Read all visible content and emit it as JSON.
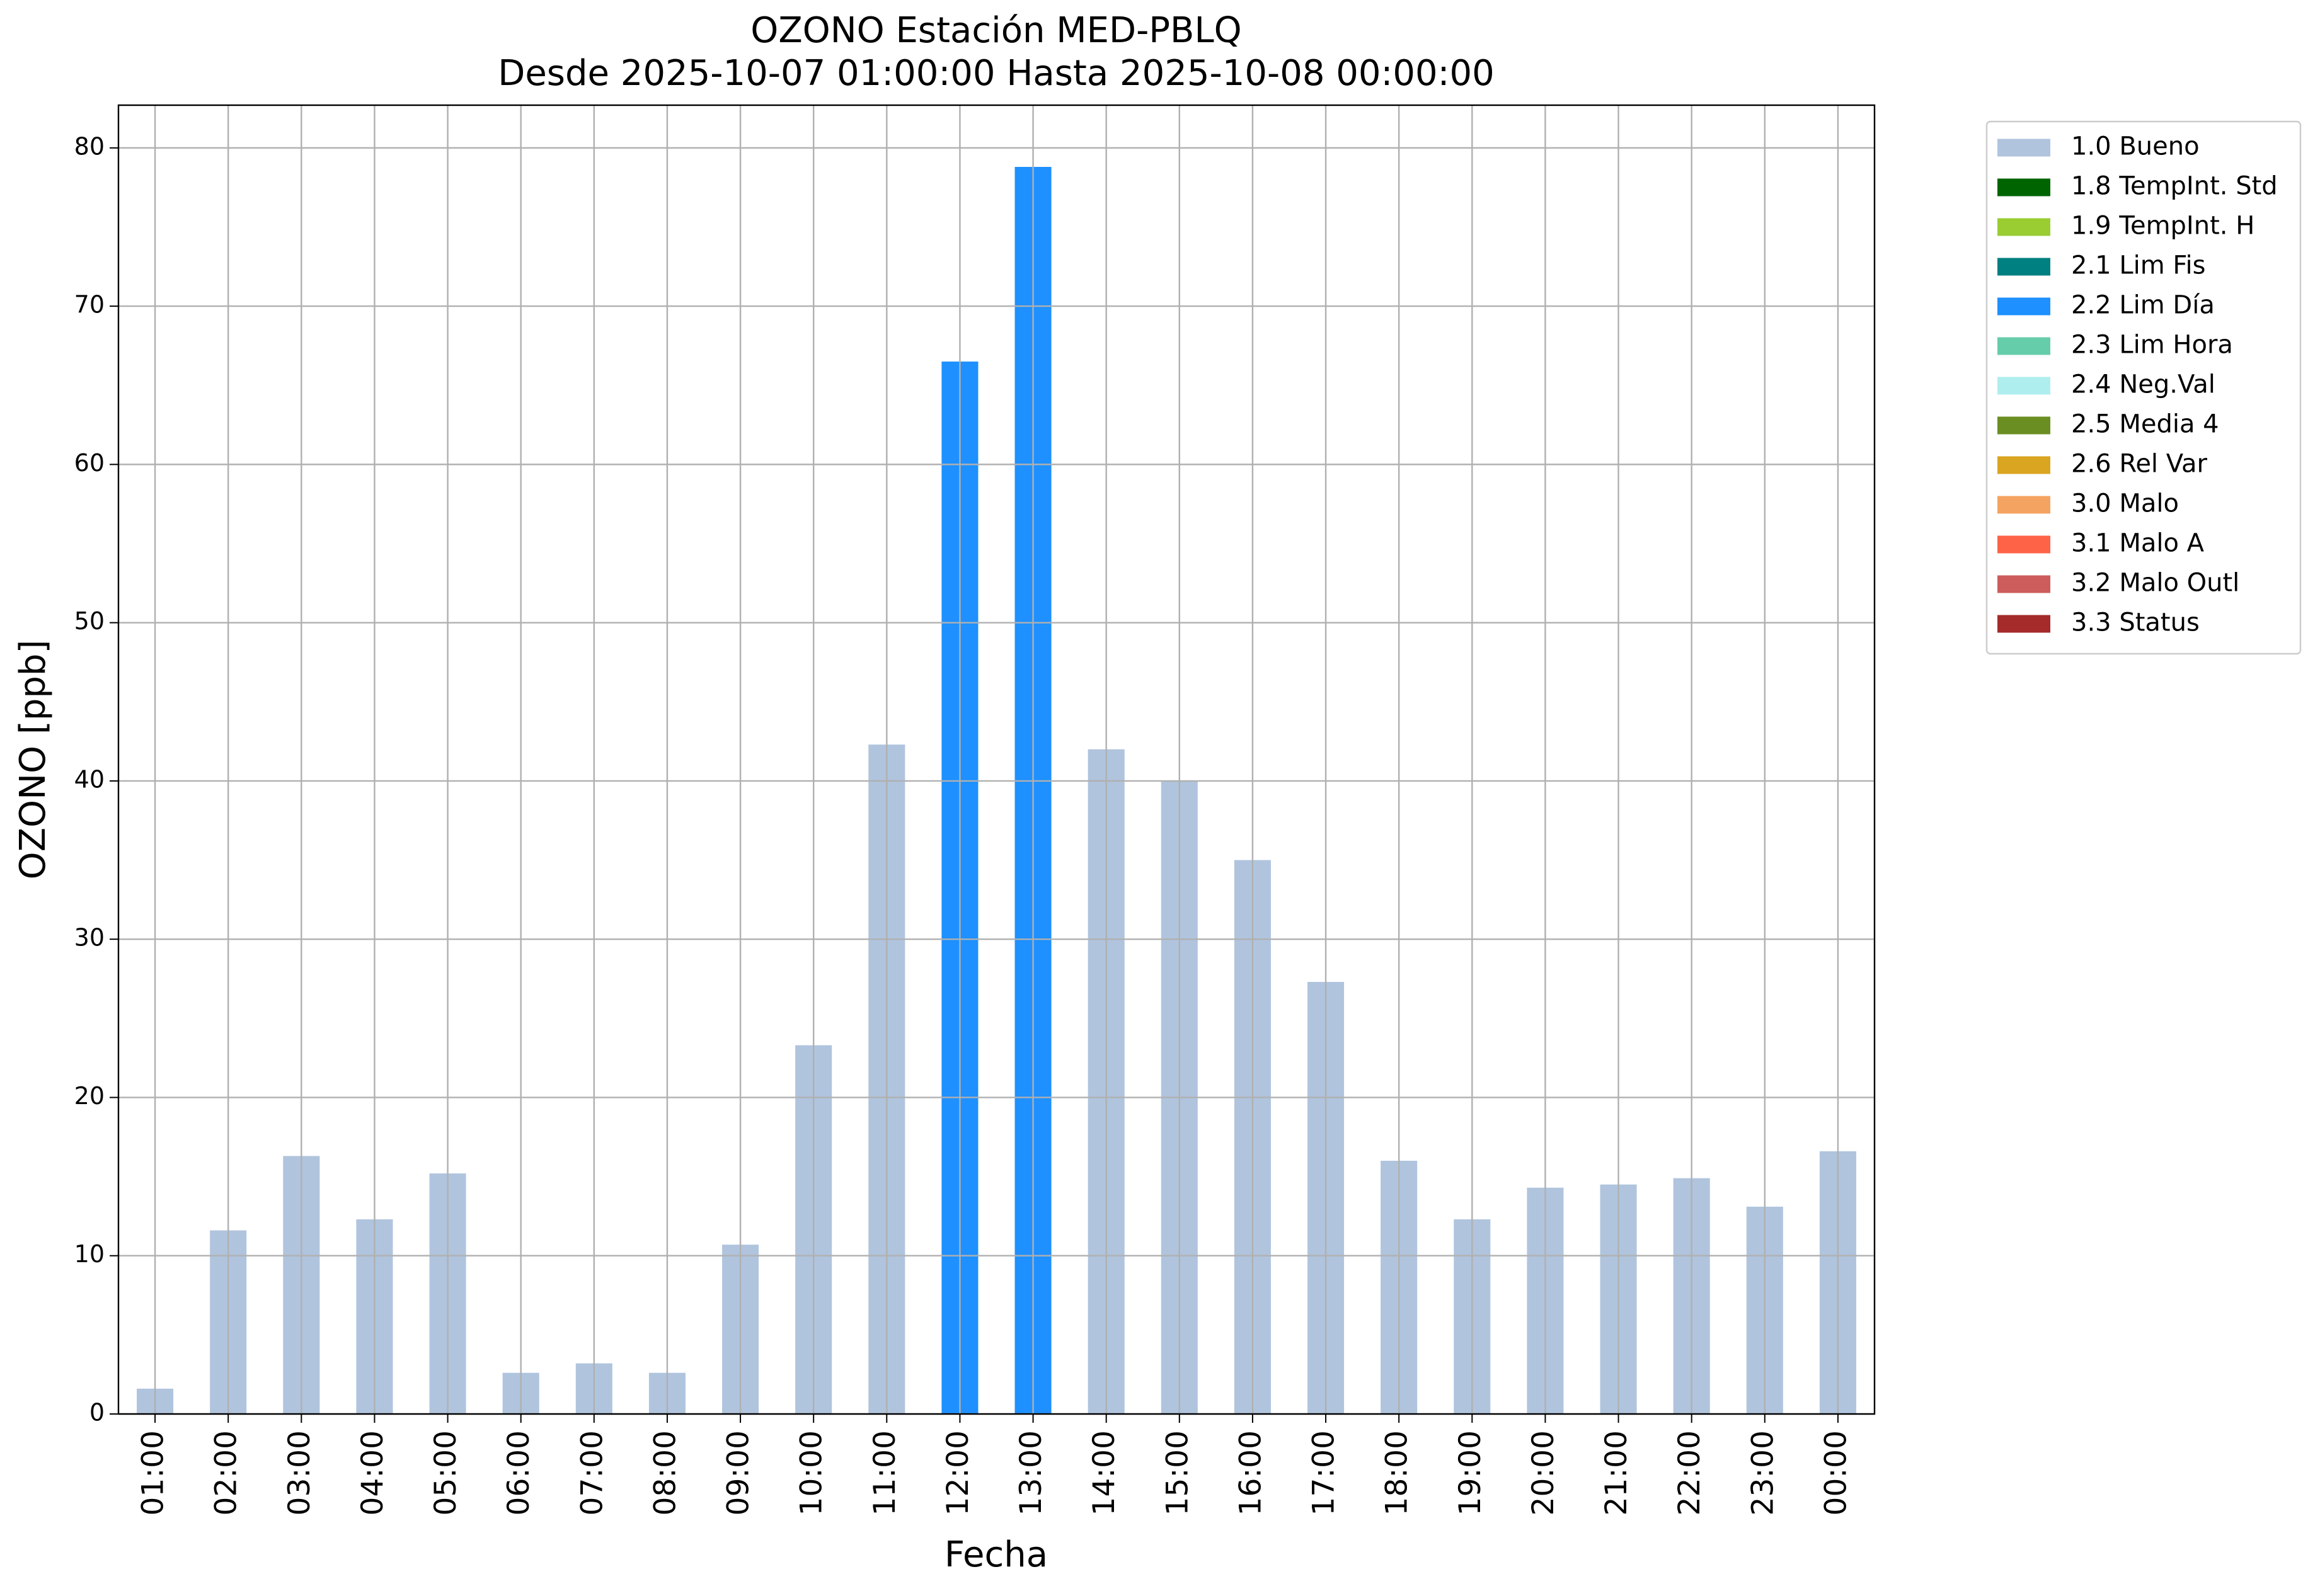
{
  "chart_data": {
    "type": "bar",
    "stacked": true,
    "title": "OZONO Estación MED-PBLQ",
    "subtitle": "Desde 2025-10-07 01:00:00 Hasta 2025-10-08 00:00:00",
    "x_label": "Fecha",
    "y_label": "OZONO [ppb]",
    "categories": [
      "01:00",
      "02:00",
      "03:00",
      "04:00",
      "05:00",
      "06:00",
      "07:00",
      "08:00",
      "09:00",
      "10:00",
      "11:00",
      "12:00",
      "13:00",
      "14:00",
      "15:00",
      "16:00",
      "17:00",
      "18:00",
      "19:00",
      "20:00",
      "21:00",
      "22:00",
      "23:00",
      "00:00"
    ],
    "series": [
      {
        "name": "1.0 Bueno",
        "color": "#b0c4de",
        "values": [
          1.6,
          11.6,
          16.3,
          12.3,
          15.2,
          2.6,
          3.2,
          2.6,
          10.7,
          23.3,
          42.3,
          null,
          null,
          42.0,
          40.0,
          35.0,
          27.3,
          16.0,
          12.3,
          14.3,
          14.5,
          14.9,
          13.1,
          16.6
        ]
      },
      {
        "name": "1.8 TempInt. Std",
        "color": "#006400",
        "values": [
          null,
          null,
          null,
          null,
          null,
          null,
          null,
          null,
          null,
          null,
          null,
          null,
          null,
          null,
          null,
          null,
          null,
          null,
          null,
          null,
          null,
          null,
          null,
          null
        ]
      },
      {
        "name": "1.9 TempInt. H",
        "color": "#9acd32",
        "values": [
          null,
          null,
          null,
          null,
          null,
          null,
          null,
          null,
          null,
          null,
          null,
          null,
          null,
          null,
          null,
          null,
          null,
          null,
          null,
          null,
          null,
          null,
          null,
          null
        ]
      },
      {
        "name": "2.1 Lim Fis",
        "color": "#008080",
        "values": [
          null,
          null,
          null,
          null,
          null,
          null,
          null,
          null,
          null,
          null,
          null,
          null,
          null,
          null,
          null,
          null,
          null,
          null,
          null,
          null,
          null,
          null,
          null,
          null
        ]
      },
      {
        "name": "2.2 Lim Día",
        "color": "#1e90ff",
        "values": [
          null,
          null,
          null,
          null,
          null,
          null,
          null,
          null,
          null,
          null,
          null,
          66.5,
          78.8,
          null,
          null,
          null,
          null,
          null,
          null,
          null,
          null,
          null,
          null,
          null
        ]
      },
      {
        "name": "2.3 Lim Hora",
        "color": "#66cdaa",
        "values": [
          null,
          null,
          null,
          null,
          null,
          null,
          null,
          null,
          null,
          null,
          null,
          null,
          null,
          null,
          null,
          null,
          null,
          null,
          null,
          null,
          null,
          null,
          null,
          null
        ]
      },
      {
        "name": "2.4 Neg.Val",
        "color": "#afeeee",
        "values": [
          null,
          null,
          null,
          null,
          null,
          null,
          null,
          null,
          null,
          null,
          null,
          null,
          null,
          null,
          null,
          null,
          null,
          null,
          null,
          null,
          null,
          null,
          null,
          null
        ]
      },
      {
        "name": "2.5 Media 4",
        "color": "#6b8e23",
        "values": [
          null,
          null,
          null,
          null,
          null,
          null,
          null,
          null,
          null,
          null,
          null,
          null,
          null,
          null,
          null,
          null,
          null,
          null,
          null,
          null,
          null,
          null,
          null,
          null
        ]
      },
      {
        "name": "2.6 Rel Var",
        "color": "#daa520",
        "values": [
          null,
          null,
          null,
          null,
          null,
          null,
          null,
          null,
          null,
          null,
          null,
          null,
          null,
          null,
          null,
          null,
          null,
          null,
          null,
          null,
          null,
          null,
          null,
          null
        ]
      },
      {
        "name": "3.0 Malo",
        "color": "#f4a460",
        "values": [
          null,
          null,
          null,
          null,
          null,
          null,
          null,
          null,
          null,
          null,
          null,
          null,
          null,
          null,
          null,
          null,
          null,
          null,
          null,
          null,
          null,
          null,
          null,
          null
        ]
      },
      {
        "name": "3.1 Malo A",
        "color": "#ff6347",
        "values": [
          null,
          null,
          null,
          null,
          null,
          null,
          null,
          null,
          null,
          null,
          null,
          null,
          null,
          null,
          null,
          null,
          null,
          null,
          null,
          null,
          null,
          null,
          null,
          null
        ]
      },
      {
        "name": "3.2 Malo Outl",
        "color": "#cd5c5c",
        "values": [
          null,
          null,
          null,
          null,
          null,
          null,
          null,
          null,
          null,
          null,
          null,
          null,
          null,
          null,
          null,
          null,
          null,
          null,
          null,
          null,
          null,
          null,
          null,
          null
        ]
      },
      {
        "name": "3.3 Status",
        "color": "#a52a2a",
        "values": [
          null,
          null,
          null,
          null,
          null,
          null,
          null,
          null,
          null,
          null,
          null,
          null,
          null,
          null,
          null,
          null,
          null,
          null,
          null,
          null,
          null,
          null,
          null,
          null
        ]
      }
    ],
    "ylim": [
      0,
      82.7
    ],
    "yticks": [
      0,
      10,
      20,
      30,
      40,
      50,
      60,
      70,
      80
    ],
    "grid": true,
    "legend": "outside-right"
  }
}
